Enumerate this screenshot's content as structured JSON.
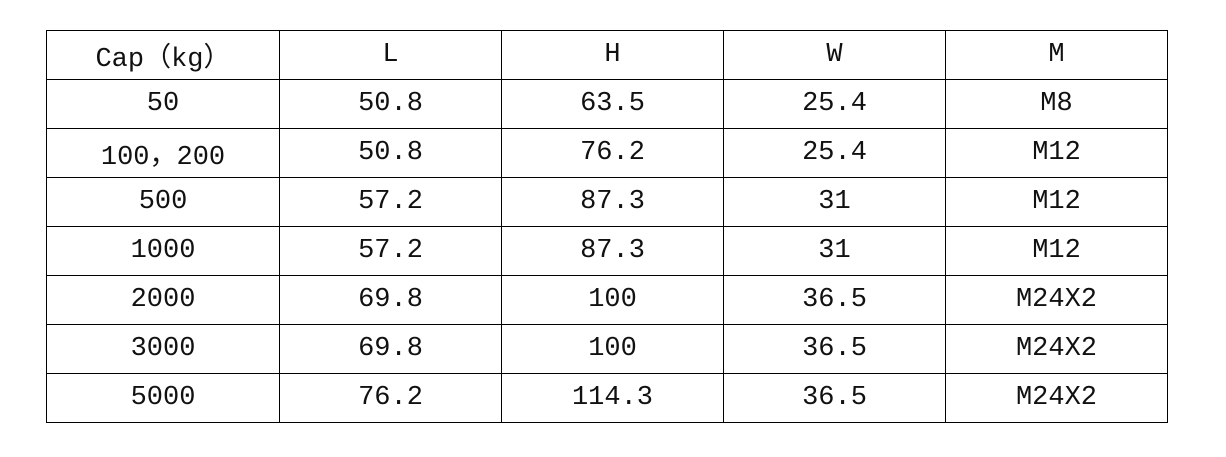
{
  "table": {
    "header": [
      "Cap（kg）",
      "L",
      "H",
      "W",
      "M"
    ],
    "rows": [
      [
        "50",
        "50.8",
        "63.5",
        "25.4",
        "M8"
      ],
      [
        "100，200",
        "50.8",
        "76.2",
        "25.4",
        "M12"
      ],
      [
        "500",
        "57.2",
        "87.3",
        "31",
        "M12"
      ],
      [
        "1000",
        "57.2",
        "87.3",
        "31",
        "M12"
      ],
      [
        "2000",
        "69.8",
        "100",
        "36.5",
        "M24X2"
      ],
      [
        "3000",
        "69.8",
        "100",
        "36.5",
        "M24X2"
      ],
      [
        "5000",
        "76.2",
        "114.3",
        "36.5",
        "M24X2"
      ]
    ]
  }
}
